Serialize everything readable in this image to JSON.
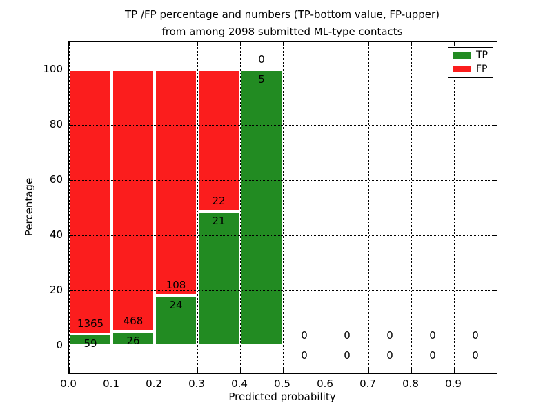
{
  "figure": {
    "title_line1": "TP /FP percentage and numbers (TP-bottom value, FP-upper)",
    "title_line2": "from among 2098 submitted ML-type contacts",
    "xlabel": "Predicted probability",
    "ylabel": "Percentage"
  },
  "colors": {
    "tp": "#228b22",
    "fp": "#fb1d1d",
    "bar_edge": "#ffffff",
    "grid": "#000000",
    "background": "#ffffff"
  },
  "chart_data": {
    "type": "bar",
    "stacked": true,
    "title": "TP /FP percentage and numbers (TP-bottom value, FP-upper) from among 2098 submitted ML-type contacts",
    "xlabel": "Predicted probability",
    "ylabel": "Percentage",
    "xlim": [
      0.0,
      1.0
    ],
    "ylim": [
      -10,
      110
    ],
    "bin_width": 0.1,
    "x_ticks": [
      "0.0",
      "0.1",
      "0.2",
      "0.3",
      "0.4",
      "0.5",
      "0.6",
      "0.7",
      "0.8",
      "0.9"
    ],
    "y_ticks": [
      0,
      20,
      40,
      60,
      80,
      100
    ],
    "grid": "dotted",
    "legend_position": "upper right",
    "categories": [
      "0.0-0.1",
      "0.1-0.2",
      "0.2-0.3",
      "0.3-0.4",
      "0.4-0.5",
      "0.5-0.6",
      "0.6-0.7",
      "0.7-0.8",
      "0.8-0.9",
      "0.9-1.0"
    ],
    "series": [
      {
        "name": "TP",
        "color": "#228b22",
        "counts": [
          59,
          26,
          24,
          21,
          5,
          0,
          0,
          0,
          0,
          0
        ],
        "pct": [
          4.14,
          5.26,
          18.18,
          48.84,
          100,
          0,
          0,
          0,
          0,
          0
        ]
      },
      {
        "name": "FP",
        "color": "#fb1d1d",
        "counts": [
          1365,
          468,
          108,
          22,
          0,
          0,
          0,
          0,
          0,
          0
        ],
        "pct": [
          95.86,
          94.74,
          81.82,
          51.16,
          0,
          0,
          0,
          0,
          0,
          0
        ]
      }
    ],
    "legend": [
      {
        "label": "TP",
        "color": "#228b22"
      },
      {
        "label": "FP",
        "color": "#fb1d1d"
      }
    ]
  }
}
